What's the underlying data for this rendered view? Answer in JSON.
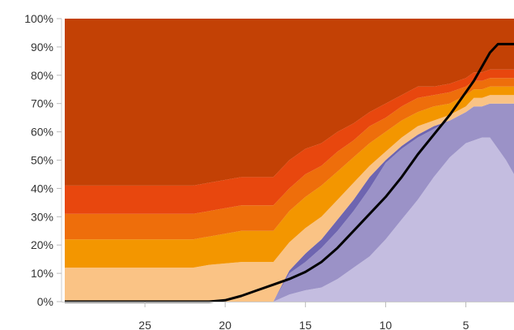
{
  "chart_data": {
    "type": "area",
    "stacked": true,
    "x_reversed": true,
    "xlim": [
      30.2,
      2.0
    ],
    "ylim": [
      0,
      100
    ],
    "x_ticks": [
      25,
      20,
      15,
      10,
      5
    ],
    "x_tick_labels": [
      "25",
      "20",
      "15",
      "10",
      "5"
    ],
    "y_ticks": [
      0,
      10,
      20,
      30,
      40,
      50,
      60,
      70,
      80,
      90,
      100
    ],
    "y_tick_labels": [
      "0%",
      "10%",
      "20%",
      "30%",
      "40%",
      "50%",
      "60%",
      "70%",
      "80%",
      "90%",
      "100%"
    ],
    "grid": false,
    "x": [
      30,
      28,
      26,
      24,
      22,
      21,
      20,
      19,
      18,
      17,
      16,
      15,
      14,
      13,
      12,
      11,
      10,
      9,
      8,
      7,
      6,
      5,
      4.5,
      4,
      3.5,
      3,
      2.5,
      2
    ],
    "series": [
      {
        "color": "#c4bde0",
        "values": [
          0,
          0,
          0,
          0,
          0,
          0,
          0,
          0,
          0,
          0,
          2.5,
          4,
          5,
          8,
          12,
          16,
          22,
          29,
          36,
          44,
          51,
          56,
          57,
          58,
          58,
          54,
          50,
          45
        ]
      },
      {
        "color": "#9b92c7",
        "values": [
          0,
          0,
          0,
          0,
          0,
          0,
          0,
          0,
          0,
          0,
          7.5,
          10,
          14,
          17,
          20,
          24,
          27,
          25,
          22,
          17,
          13,
          11,
          12,
          11,
          12,
          16,
          20,
          25
        ]
      },
      {
        "color": "#6e65b0",
        "values": [
          0,
          0,
          0,
          0,
          0,
          0,
          0,
          0,
          0,
          0,
          1,
          3,
          3,
          4,
          4,
          4,
          1,
          1,
          1,
          1,
          0,
          0,
          0,
          0,
          0,
          0,
          0,
          0
        ]
      },
      {
        "color": "#fac385",
        "values": [
          12,
          12,
          12,
          12,
          12,
          13,
          13.5,
          14,
          14,
          14,
          10,
          9,
          8,
          7,
          6,
          4,
          3,
          3,
          3,
          2,
          2,
          2,
          3,
          3,
          3,
          3,
          3,
          3
        ]
      },
      {
        "color": "#f39600",
        "values": [
          10,
          10,
          10,
          10,
          10,
          10,
          10.5,
          11,
          11,
          11,
          11,
          11,
          11,
          10,
          9,
          8,
          7,
          6,
          5,
          5,
          4,
          4,
          3,
          3,
          3,
          3,
          3,
          3
        ]
      },
      {
        "color": "#ee6e0b",
        "values": [
          9,
          9,
          9,
          9,
          9,
          9,
          9,
          9,
          9,
          9,
          8,
          8,
          7,
          7,
          6,
          6,
          5,
          5,
          5,
          4,
          4,
          3,
          3,
          3,
          3,
          3,
          3,
          3
        ]
      },
      {
        "color": "#e8470e",
        "values": [
          10,
          10,
          10,
          10,
          10,
          10,
          10,
          10,
          10,
          10,
          10,
          9,
          8,
          7,
          6,
          5,
          5,
          4,
          4,
          3,
          3,
          3,
          3,
          3,
          3,
          3,
          3,
          3
        ]
      },
      {
        "color": "#c34105",
        "values": [
          59,
          59,
          59,
          59,
          59,
          58,
          57,
          56,
          56,
          56,
          50,
          46,
          44,
          40,
          37,
          33,
          30,
          27,
          24,
          24,
          23,
          21,
          19,
          19,
          18,
          18,
          18,
          18
        ]
      }
    ],
    "line": {
      "color": "#000000",
      "values": [
        0,
        0,
        0,
        0,
        0,
        0,
        0.5,
        2,
        4,
        6,
        8,
        10.5,
        14,
        19,
        25,
        31,
        37,
        44,
        52,
        59,
        66,
        74,
        78,
        83,
        88,
        91,
        91,
        91
      ]
    }
  }
}
